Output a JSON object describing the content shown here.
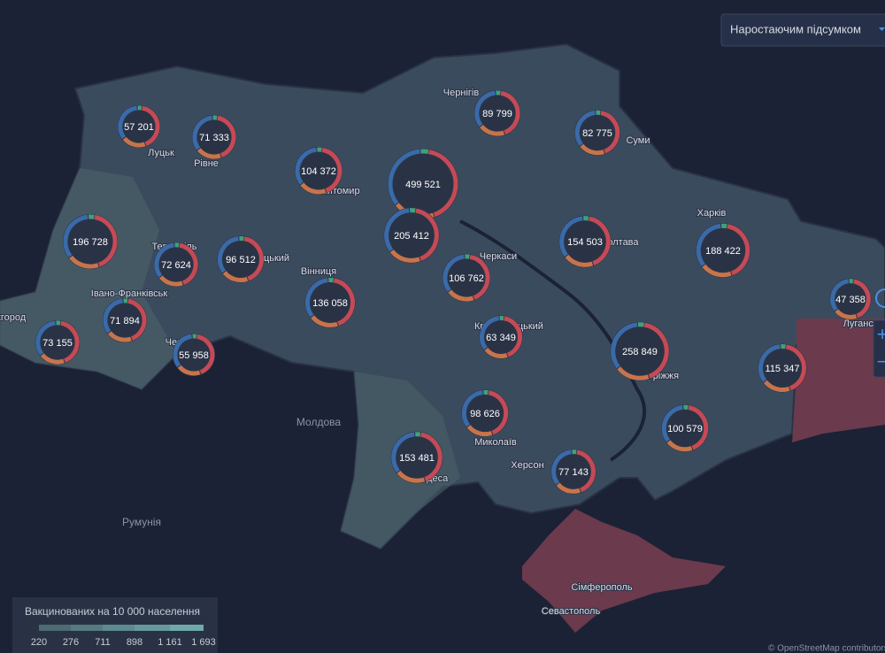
{
  "controls": {
    "mode_select": "Наростаючим підсумком",
    "zoom_in": "+",
    "zoom_out": "−"
  },
  "markers": [
    {
      "value": 57201,
      "label": "57 201"
    },
    {
      "value": 71333,
      "label": "71 333"
    },
    {
      "value": 104372,
      "label": "104 372"
    },
    {
      "value": 499521,
      "label": "499 521"
    },
    {
      "value": 89799,
      "label": "89 799"
    },
    {
      "value": 82775,
      "label": "82 775"
    },
    {
      "value": 196728,
      "label": "196 728"
    },
    {
      "value": 205412,
      "label": "205 412"
    },
    {
      "value": 154503,
      "label": "154 503"
    },
    {
      "value": 188422,
      "label": "188 422"
    },
    {
      "value": 72624,
      "label": "72 624"
    },
    {
      "value": 96512,
      "label": "96 512"
    },
    {
      "value": 106762,
      "label": "106 762"
    },
    {
      "value": 136058,
      "label": "136 058"
    },
    {
      "value": 71894,
      "label": "71 894"
    },
    {
      "value": 73155,
      "label": "73 155"
    },
    {
      "value": 55958,
      "label": "55 958"
    },
    {
      "value": 63349,
      "label": "63 349"
    },
    {
      "value": 258849,
      "label": "258 849"
    },
    {
      "value": 47358,
      "label": "47 358"
    },
    {
      "value": 115347,
      "label": "115 347"
    },
    {
      "value": 98626,
      "label": "98 626"
    },
    {
      "value": 100579,
      "label": "100 579"
    },
    {
      "value": 153481,
      "label": "153 481"
    },
    {
      "value": 77143,
      "label": "77 143"
    }
  ],
  "place_labels": [
    "Чернігів",
    "Луцьк",
    "Рівне",
    "Житомир",
    "Суми",
    "Харків",
    "Черкаси",
    "Полтава",
    "Вінниця",
    "Тернопіль",
    "Хмельницький",
    "Івано-Франківськ",
    "Ужгород",
    "Кропивницький",
    "Запоріжжя",
    "Луганськ",
    "Миколаїв",
    "Херсон",
    "Одеса",
    "Чернівці",
    "Молдова",
    "Румунія",
    "Сімферополь",
    "Севастополь"
  ],
  "legend": {
    "title": "Вакцинованих на 10 000 населення",
    "ticks": [
      220,
      276,
      711,
      898,
      {
        "value": 1161,
        "label": "1 161"
      },
      {
        "value": 1693,
        "label": "1 693"
      }
    ],
    "colors": [
      "#4e6a72",
      "#557a80",
      "#5d8a8e",
      "#66999c",
      "#6fa9aa"
    ]
  },
  "attribution": "© OpenStreetMap contributors"
}
